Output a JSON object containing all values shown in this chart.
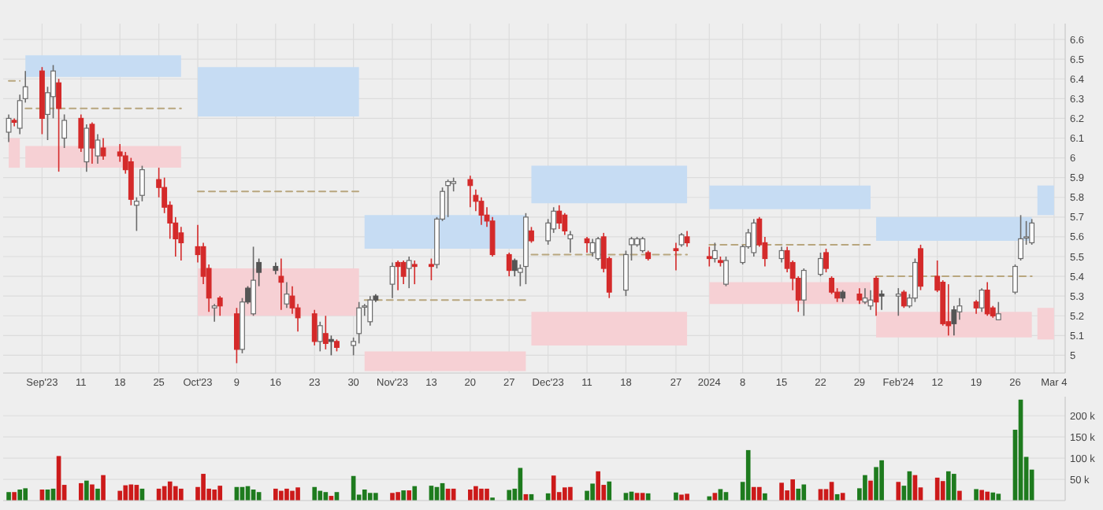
{
  "chart_data": [
    {
      "type": "candlestick",
      "grid": true,
      "x": [
        "2023-08-29",
        "2023-08-30",
        "2023-08-31",
        "2023-09-01",
        "2023-09-04",
        "2023-09-05",
        "2023-09-06",
        "2023-09-07",
        "2023-09-08",
        "2023-09-11",
        "2023-09-12",
        "2023-09-13",
        "2023-09-14",
        "2023-09-15",
        "2023-09-18",
        "2023-09-19",
        "2023-09-20",
        "2023-09-21",
        "2023-09-22",
        "2023-09-25",
        "2023-09-26",
        "2023-09-27",
        "2023-09-28",
        "2023-09-29",
        "2023-10-02",
        "2023-10-03",
        "2023-10-04",
        "2023-10-05",
        "2023-10-06",
        "2023-10-09",
        "2023-10-10",
        "2023-10-11",
        "2023-10-12",
        "2023-10-13",
        "2023-10-16",
        "2023-10-17",
        "2023-10-18",
        "2023-10-19",
        "2023-10-20",
        "2023-10-23",
        "2023-10-24",
        "2023-10-25",
        "2023-10-26",
        "2023-10-27",
        "2023-10-30",
        "2023-10-31",
        "2023-11-01",
        "2023-11-02",
        "2023-11-03",
        "2023-11-06",
        "2023-11-07",
        "2023-11-08",
        "2023-11-09",
        "2023-11-10",
        "2023-11-13",
        "2023-11-14",
        "2023-11-15",
        "2023-11-16",
        "2023-11-17",
        "2023-11-20",
        "2023-11-21",
        "2023-11-22",
        "2023-11-23",
        "2023-11-24",
        "2023-11-27",
        "2023-11-28",
        "2023-11-29",
        "2023-11-30",
        "2023-12-01",
        "2023-12-04",
        "2023-12-05",
        "2023-12-06",
        "2023-12-07",
        "2023-12-08",
        "2023-12-11",
        "2023-12-12",
        "2023-12-13",
        "2023-12-14",
        "2023-12-15",
        "2023-12-18",
        "2023-12-19",
        "2023-12-20",
        "2023-12-21",
        "2023-12-22",
        "2023-12-27",
        "2023-12-28",
        "2023-12-29",
        "2024-01-02",
        "2024-01-03",
        "2024-01-04",
        "2024-01-05",
        "2024-01-08",
        "2024-01-09",
        "2024-01-10",
        "2024-01-11",
        "2024-01-12",
        "2024-01-15",
        "2024-01-16",
        "2024-01-17",
        "2024-01-18",
        "2024-01-19",
        "2024-01-22",
        "2024-01-23",
        "2024-01-24",
        "2024-01-25",
        "2024-01-26",
        "2024-01-29",
        "2024-01-30",
        "2024-01-31",
        "2024-02-01",
        "2024-02-02",
        "2024-02-05",
        "2024-02-06",
        "2024-02-07",
        "2024-02-08",
        "2024-02-09",
        "2024-02-12",
        "2024-02-13",
        "2024-02-14",
        "2024-02-15",
        "2024-02-16",
        "2024-02-19",
        "2024-02-20",
        "2024-02-21",
        "2024-02-22",
        "2024-02-23",
        "2024-02-26",
        "2024-02-27",
        "2024-02-28",
        "2024-02-29"
      ],
      "ohlc": [
        [
          6.13,
          6.22,
          6.08,
          6.2
        ],
        [
          6.19,
          6.2,
          6.16,
          6.18
        ],
        [
          6.15,
          6.32,
          6.12,
          6.29
        ],
        [
          6.3,
          6.44,
          6.28,
          6.36
        ],
        [
          6.44,
          6.46,
          6.12,
          6.2
        ],
        [
          6.22,
          6.36,
          6.09,
          6.33
        ],
        [
          6.31,
          6.47,
          6.2,
          6.44
        ],
        [
          6.38,
          6.4,
          5.93,
          6.25
        ],
        [
          6.1,
          6.22,
          6.05,
          6.19
        ],
        [
          6.2,
          6.22,
          6.03,
          6.05
        ],
        [
          5.98,
          6.17,
          5.93,
          6.15
        ],
        [
          6.17,
          6.18,
          5.97,
          6.05
        ],
        [
          6.01,
          6.12,
          5.97,
          6.09
        ],
        [
          6.05,
          6.1,
          5.99,
          6.01
        ],
        [
          6.03,
          6.07,
          5.98,
          6.01
        ],
        [
          6.01,
          6.03,
          5.92,
          5.94
        ],
        [
          5.98,
          6.0,
          5.76,
          5.79
        ],
        [
          5.76,
          5.8,
          5.63,
          5.78
        ],
        [
          5.81,
          5.96,
          5.78,
          5.94
        ],
        [
          5.89,
          5.95,
          5.8,
          5.85
        ],
        [
          5.85,
          5.9,
          5.72,
          5.75
        ],
        [
          5.76,
          5.78,
          5.59,
          5.67
        ],
        [
          5.67,
          5.7,
          5.5,
          5.59
        ],
        [
          5.62,
          5.65,
          5.48,
          5.57
        ],
        [
          5.55,
          5.66,
          5.47,
          5.51
        ],
        [
          5.55,
          5.57,
          5.36,
          5.4
        ],
        [
          5.44,
          5.46,
          5.22,
          5.29
        ],
        [
          5.24,
          5.26,
          5.17,
          5.25
        ],
        [
          5.29,
          5.3,
          5.2,
          5.25
        ],
        [
          5.21,
          5.24,
          4.96,
          5.03
        ],
        [
          5.03,
          5.29,
          5.01,
          5.27
        ],
        [
          5.27,
          5.35,
          5.26,
          5.34
        ],
        [
          5.21,
          5.55,
          5.2,
          5.38
        ],
        [
          5.42,
          5.49,
          5.35,
          5.47
        ],
        [
          5.43,
          5.47,
          5.41,
          5.45
        ],
        [
          5.4,
          5.49,
          5.23,
          5.37
        ],
        [
          5.26,
          5.37,
          5.24,
          5.31
        ],
        [
          5.3,
          5.35,
          5.21,
          5.24
        ],
        [
          5.24,
          5.26,
          5.12,
          5.19
        ],
        [
          5.21,
          5.23,
          5.05,
          5.07
        ],
        [
          5.07,
          5.17,
          5.02,
          5.15
        ],
        [
          5.11,
          5.2,
          5.03,
          5.06
        ],
        [
          5.07,
          5.1,
          5.0,
          5.08
        ],
        [
          5.07,
          5.08,
          5.02,
          5.04
        ],
        [
          5.05,
          5.09,
          5.0,
          5.07
        ],
        [
          5.11,
          5.27,
          5.06,
          5.24
        ],
        [
          5.25,
          5.26,
          5.2,
          5.25
        ],
        [
          5.17,
          5.3,
          5.15,
          5.28
        ],
        [
          5.28,
          5.31,
          5.27,
          5.3
        ],
        [
          5.36,
          5.47,
          5.29,
          5.45
        ],
        [
          5.47,
          5.48,
          5.33,
          5.45
        ],
        [
          5.47,
          5.48,
          5.36,
          5.4
        ],
        [
          5.44,
          5.5,
          5.34,
          5.48
        ],
        [
          5.46,
          5.48,
          5.36,
          5.45
        ],
        [
          5.46,
          5.49,
          5.38,
          5.45
        ],
        [
          5.46,
          5.7,
          5.44,
          5.69
        ],
        [
          5.69,
          5.85,
          5.68,
          5.83
        ],
        [
          5.86,
          5.89,
          5.7,
          5.88
        ],
        [
          5.87,
          5.9,
          5.83,
          5.88
        ],
        [
          5.89,
          5.91,
          5.75,
          5.86
        ],
        [
          5.81,
          5.84,
          5.73,
          5.78
        ],
        [
          5.78,
          5.8,
          5.66,
          5.71
        ],
        [
          5.71,
          5.75,
          5.65,
          5.68
        ],
        [
          5.68,
          5.7,
          5.5,
          5.51
        ],
        [
          5.51,
          5.52,
          5.4,
          5.43
        ],
        [
          5.43,
          5.49,
          5.4,
          5.48
        ],
        [
          5.42,
          5.46,
          5.35,
          5.44
        ],
        [
          5.45,
          5.72,
          5.36,
          5.7
        ],
        [
          5.63,
          5.65,
          5.57,
          5.58
        ],
        [
          5.58,
          5.69,
          5.56,
          5.67
        ],
        [
          5.64,
          5.75,
          5.62,
          5.73
        ],
        [
          5.73,
          5.76,
          5.64,
          5.67
        ],
        [
          5.71,
          5.72,
          5.61,
          5.63
        ],
        [
          5.59,
          5.63,
          5.52,
          5.61
        ],
        [
          5.59,
          5.6,
          5.52,
          5.57
        ],
        [
          5.52,
          5.59,
          5.5,
          5.57
        ],
        [
          5.49,
          5.6,
          5.48,
          5.59
        ],
        [
          5.6,
          5.62,
          5.42,
          5.44
        ],
        [
          5.49,
          5.5,
          5.29,
          5.32
        ],
        [
          5.33,
          5.53,
          5.3,
          5.51
        ],
        [
          5.56,
          5.6,
          5.48,
          5.59
        ],
        [
          5.56,
          5.6,
          5.55,
          5.59
        ],
        [
          5.53,
          5.6,
          5.52,
          5.59
        ],
        [
          5.52,
          5.53,
          5.48,
          5.49
        ],
        [
          5.54,
          5.57,
          5.43,
          5.53
        ],
        [
          5.56,
          5.62,
          5.55,
          5.61
        ],
        [
          5.6,
          5.63,
          5.55,
          5.57
        ],
        [
          5.5,
          5.55,
          5.45,
          5.49
        ],
        [
          5.49,
          5.57,
          5.47,
          5.53
        ],
        [
          5.48,
          5.5,
          5.45,
          5.47
        ],
        [
          5.36,
          5.5,
          5.35,
          5.48
        ],
        [
          5.47,
          5.56,
          5.46,
          5.55
        ],
        [
          5.55,
          5.64,
          5.54,
          5.62
        ],
        [
          5.52,
          5.69,
          5.5,
          5.67
        ],
        [
          5.69,
          5.7,
          5.55,
          5.56
        ],
        [
          5.57,
          5.6,
          5.45,
          5.49
        ],
        [
          5.49,
          5.55,
          5.47,
          5.53
        ],
        [
          5.53,
          5.55,
          5.42,
          5.44
        ],
        [
          5.47,
          5.48,
          5.33,
          5.39
        ],
        [
          5.39,
          5.4,
          5.22,
          5.28
        ],
        [
          5.28,
          5.44,
          5.2,
          5.43
        ],
        [
          5.41,
          5.52,
          5.4,
          5.49
        ],
        [
          5.52,
          5.54,
          5.42,
          5.44
        ],
        [
          5.39,
          5.4,
          5.31,
          5.32
        ],
        [
          5.32,
          5.34,
          5.27,
          5.29
        ],
        [
          5.29,
          5.33,
          5.27,
          5.32
        ],
        [
          5.31,
          5.34,
          5.26,
          5.28
        ],
        [
          5.27,
          5.34,
          5.26,
          5.29
        ],
        [
          5.25,
          5.33,
          5.23,
          5.28
        ],
        [
          5.39,
          5.4,
          5.2,
          5.27
        ],
        [
          5.3,
          5.33,
          5.23,
          5.31
        ],
        [
          5.3,
          5.34,
          5.2,
          5.31
        ],
        [
          5.32,
          5.33,
          5.24,
          5.25
        ],
        [
          5.25,
          5.31,
          5.24,
          5.29
        ],
        [
          5.29,
          5.49,
          5.27,
          5.47
        ],
        [
          5.54,
          5.56,
          5.33,
          5.35
        ],
        [
          5.4,
          5.48,
          5.32,
          5.33
        ],
        [
          5.37,
          5.38,
          5.15,
          5.16
        ],
        [
          5.17,
          5.36,
          5.1,
          5.15
        ],
        [
          5.16,
          5.25,
          5.1,
          5.23
        ],
        [
          5.22,
          5.29,
          5.18,
          5.25
        ],
        [
          5.27,
          5.28,
          5.21,
          5.24
        ],
        [
          5.24,
          5.34,
          5.22,
          5.33
        ],
        [
          5.33,
          5.37,
          5.2,
          5.21
        ],
        [
          5.24,
          5.25,
          5.19,
          5.2
        ],
        [
          5.18,
          5.27,
          5.18,
          5.21
        ],
        [
          5.32,
          5.46,
          5.31,
          5.45
        ],
        [
          5.49,
          5.71,
          5.48,
          5.59
        ],
        [
          5.6,
          5.68,
          5.56,
          5.6
        ],
        [
          5.57,
          5.69,
          5.56,
          5.67
        ]
      ],
      "colors": [
        "#ffffff",
        "#d42a2a",
        "#ffffff",
        "#ffffff",
        "#d42a2a",
        "#ffffff",
        "#ffffff",
        "#d42a2a",
        "#ffffff",
        "#d42a2a",
        "#ffffff",
        "#d42a2a",
        "#ffffff",
        "#d42a2a",
        "#d42a2a",
        "#d42a2a",
        "#d42a2a",
        "#ffffff",
        "#ffffff",
        "#d42a2a",
        "#d42a2a",
        "#d42a2a",
        "#d42a2a",
        "#d42a2a",
        "#d42a2a",
        "#d42a2a",
        "#d42a2a",
        "#ffffff",
        "#d42a2a",
        "#d42a2a",
        "#ffffff",
        "#555555",
        "#ffffff",
        "#555555",
        "#555555",
        "#d42a2a",
        "#ffffff",
        "#d42a2a",
        "#d42a2a",
        "#d42a2a",
        "#ffffff",
        "#d42a2a",
        "#555555",
        "#d42a2a",
        "#ffffff",
        "#ffffff",
        "#ffffff",
        "#ffffff",
        "#555555",
        "#ffffff",
        "#d42a2a",
        "#d42a2a",
        "#ffffff",
        "#d42a2a",
        "#d42a2a",
        "#ffffff",
        "#ffffff",
        "#ffffff",
        "#ffffff",
        "#d42a2a",
        "#d42a2a",
        "#d42a2a",
        "#d42a2a",
        "#d42a2a",
        "#d42a2a",
        "#555555",
        "#ffffff",
        "#ffffff",
        "#d42a2a",
        "#ffffff",
        "#ffffff",
        "#d42a2a",
        "#d42a2a",
        "#ffffff",
        "#d42a2a",
        "#ffffff",
        "#ffffff",
        "#d42a2a",
        "#d42a2a",
        "#ffffff",
        "#ffffff",
        "#ffffff",
        "#ffffff",
        "#d42a2a",
        "#d42a2a",
        "#ffffff",
        "#d42a2a",
        "#d42a2a",
        "#ffffff",
        "#d42a2a",
        "#ffffff",
        "#ffffff",
        "#ffffff",
        "#ffffff",
        "#d42a2a",
        "#d42a2a",
        "#ffffff",
        "#d42a2a",
        "#d42a2a",
        "#d42a2a",
        "#ffffff",
        "#ffffff",
        "#d42a2a",
        "#d42a2a",
        "#d42a2a",
        "#555555",
        "#d42a2a",
        "#ffffff",
        "#ffffff",
        "#d42a2a",
        "#555555",
        "#ffffff",
        "#d42a2a",
        "#ffffff",
        "#ffffff",
        "#d42a2a",
        "#d42a2a",
        "#d42a2a",
        "#d42a2a",
        "#555555",
        "#ffffff",
        "#d42a2a",
        "#ffffff",
        "#d42a2a",
        "#d42a2a",
        "#ffffff",
        "#ffffff",
        "#ffffff",
        "#ffffff",
        "#ffffff"
      ],
      "series": [
        {
          "type": "area",
          "x": [
            "2023-08-29",
            "2023-08-31"
          ],
          "lower": [
            5.95,
            5.95
          ],
          "upper": [
            6.1,
            6.1
          ],
          "values": [
            null,
            null
          ],
          "color": "#f6d0d4"
        },
        {
          "type": "line",
          "x": [
            "2023-08-29",
            "2023-08-31"
          ],
          "values": [
            6.39,
            6.39
          ],
          "color": "#b8a67e",
          "line_style": "dashed"
        },
        {
          "type": "area",
          "x": [
            "2023-09-01",
            "2023-09-29"
          ],
          "lower": [
            6.41,
            6.41
          ],
          "upper": [
            6.52,
            6.52
          ],
          "values": [
            null,
            null
          ],
          "color": "#c6dcf3"
        },
        {
          "type": "line",
          "x": [
            "2023-09-01",
            "2023-09-29"
          ],
          "values": [
            6.25,
            6.25
          ],
          "color": "#b8a67e",
          "line_style": "dashed"
        },
        {
          "type": "area",
          "x": [
            "2023-09-01",
            "2023-09-29"
          ],
          "lower": [
            5.95,
            5.95
          ],
          "upper": [
            6.06,
            6.06
          ],
          "values": [
            null,
            null
          ],
          "color": "#f6d0d4"
        },
        {
          "type": "area",
          "x": [
            "2023-10-02",
            "2023-10-31"
          ],
          "lower": [
            6.21,
            6.21
          ],
          "upper": [
            6.46,
            6.46
          ],
          "values": [
            null,
            null
          ],
          "color": "#c6dcf3"
        },
        {
          "type": "line",
          "x": [
            "2023-10-02",
            "2023-10-31"
          ],
          "values": [
            5.83,
            5.83
          ],
          "color": "#b8a67e",
          "line_style": "dashed"
        },
        {
          "type": "area",
          "x": [
            "2023-10-02",
            "2023-10-31"
          ],
          "lower": [
            5.2,
            5.2
          ],
          "upper": [
            5.44,
            5.44
          ],
          "values": [
            null,
            null
          ],
          "color": "#f6d0d4"
        },
        {
          "type": "area",
          "x": [
            "2023-11-01",
            "2023-11-30"
          ],
          "lower": [
            5.54,
            5.54
          ],
          "upper": [
            5.71,
            5.71
          ],
          "values": [
            null,
            null
          ],
          "color": "#c6dcf3"
        },
        {
          "type": "line",
          "x": [
            "2023-11-01",
            "2023-11-30"
          ],
          "values": [
            5.28,
            5.28
          ],
          "color": "#b8a67e",
          "line_style": "dashed"
        },
        {
          "type": "area",
          "x": [
            "2023-11-01",
            "2023-11-30"
          ],
          "lower": [
            4.92,
            4.92
          ],
          "upper": [
            5.02,
            5.02
          ],
          "values": [
            null,
            null
          ],
          "color": "#f6d0d4"
        },
        {
          "type": "area",
          "x": [
            "2023-12-01",
            "2023-12-29"
          ],
          "lower": [
            5.77,
            5.77
          ],
          "upper": [
            5.96,
            5.96
          ],
          "values": [
            null,
            null
          ],
          "color": "#c6dcf3"
        },
        {
          "type": "line",
          "x": [
            "2023-12-01",
            "2023-12-29"
          ],
          "values": [
            5.51,
            5.51
          ],
          "color": "#b8a67e",
          "line_style": "dashed"
        },
        {
          "type": "area",
          "x": [
            "2023-12-01",
            "2023-12-29"
          ],
          "lower": [
            5.05,
            5.05
          ],
          "upper": [
            5.22,
            5.22
          ],
          "values": [
            null,
            null
          ],
          "color": "#f6d0d4"
        },
        {
          "type": "area",
          "x": [
            "2024-01-02",
            "2024-01-31"
          ],
          "lower": [
            5.74,
            5.74
          ],
          "upper": [
            5.86,
            5.86
          ],
          "values": [
            null,
            null
          ],
          "color": "#c6dcf3"
        },
        {
          "type": "line",
          "x": [
            "2024-01-02",
            "2024-01-31"
          ],
          "values": [
            5.56,
            5.56
          ],
          "color": "#b8a67e",
          "line_style": "dashed"
        },
        {
          "type": "area",
          "x": [
            "2024-01-02",
            "2024-01-31"
          ],
          "lower": [
            5.26,
            5.26
          ],
          "upper": [
            5.37,
            5.37
          ],
          "values": [
            null,
            null
          ],
          "color": "#f6d0d4"
        },
        {
          "type": "area",
          "x": [
            "2024-02-01",
            "2024-02-29"
          ],
          "lower": [
            5.58,
            5.58
          ],
          "upper": [
            5.7,
            5.7
          ],
          "values": [
            null,
            null
          ],
          "color": "#c6dcf3"
        },
        {
          "type": "line",
          "x": [
            "2024-02-01",
            "2024-02-29"
          ],
          "values": [
            5.4,
            5.4
          ],
          "color": "#b8a67e",
          "line_style": "dashed"
        },
        {
          "type": "area",
          "x": [
            "2024-02-01",
            "2024-02-29"
          ],
          "lower": [
            5.09,
            5.09
          ],
          "upper": [
            5.22,
            5.22
          ],
          "values": [
            null,
            null
          ],
          "color": "#f6d0d4"
        },
        {
          "type": "area",
          "x": [
            "2024-03-01",
            "2024-03-04"
          ],
          "lower": [
            5.71,
            5.71
          ],
          "upper": [
            5.86,
            5.86
          ],
          "values": [
            null,
            null
          ],
          "color": "#c6dcf3"
        },
        {
          "type": "area",
          "x": [
            "2024-03-01",
            "2024-03-04"
          ],
          "lower": [
            5.08,
            5.08
          ],
          "upper": [
            5.24,
            5.24
          ],
          "values": [
            null,
            null
          ],
          "color": "#f6d0d4"
        }
      ],
      "xlim": [
        "2023-08-28",
        "2024-03-06"
      ],
      "xticks": [
        {
          "value": "2023-09-04",
          "label": "Sep'23"
        },
        {
          "value": "2023-09-11",
          "label": "11"
        },
        {
          "value": "2023-09-18",
          "label": "18"
        },
        {
          "value": "2023-09-25",
          "label": "25"
        },
        {
          "value": "2023-10-02",
          "label": "Oct'23"
        },
        {
          "value": "2023-10-09",
          "label": "9"
        },
        {
          "value": "2023-10-16",
          "label": "16"
        },
        {
          "value": "2023-10-23",
          "label": "23"
        },
        {
          "value": "2023-10-30",
          "label": "30"
        },
        {
          "value": "2023-11-06",
          "label": "Nov'23"
        },
        {
          "value": "2023-11-13",
          "label": "13"
        },
        {
          "value": "2023-11-20",
          "label": "20"
        },
        {
          "value": "2023-11-27",
          "label": "27"
        },
        {
          "value": "2023-12-04",
          "label": "Dec'23"
        },
        {
          "value": "2023-12-11",
          "label": "11"
        },
        {
          "value": "2023-12-18",
          "label": "18"
        },
        {
          "value": "2023-12-27",
          "label": "27"
        },
        {
          "value": "2024-01-02",
          "label": "2024"
        },
        {
          "value": "2024-01-08",
          "label": "8"
        },
        {
          "value": "2024-01-15",
          "label": "15"
        },
        {
          "value": "2024-01-22",
          "label": "22"
        },
        {
          "value": "2024-01-29",
          "label": "29"
        },
        {
          "value": "2024-02-05",
          "label": "Feb'24"
        },
        {
          "value": "2024-02-12",
          "label": "12"
        },
        {
          "value": "2024-02-19",
          "label": "19"
        },
        {
          "value": "2024-02-26",
          "label": "26"
        },
        {
          "value": "2024-03-04",
          "label": "Mar 4"
        }
      ],
      "ylim": [
        4.91,
        6.68
      ],
      "yticks": [
        5,
        5.1,
        5.2,
        5.3,
        5.4,
        5.5,
        5.6,
        5.7,
        5.8,
        5.9,
        6,
        6.1,
        6.2,
        6.3,
        6.4,
        6.5,
        6.6
      ]
    },
    {
      "type": "bar",
      "grid": true,
      "tick_labels": "y",
      "x": [
        "2023-08-29",
        "2023-08-30",
        "2023-08-31",
        "2023-09-01",
        "2023-09-04",
        "2023-09-05",
        "2023-09-06",
        "2023-09-07",
        "2023-09-08",
        "2023-09-11",
        "2023-09-12",
        "2023-09-13",
        "2023-09-14",
        "2023-09-15",
        "2023-09-18",
        "2023-09-19",
        "2023-09-20",
        "2023-09-21",
        "2023-09-22",
        "2023-09-25",
        "2023-09-26",
        "2023-09-27",
        "2023-09-28",
        "2023-09-29",
        "2023-10-02",
        "2023-10-03",
        "2023-10-04",
        "2023-10-05",
        "2023-10-06",
        "2023-10-09",
        "2023-10-10",
        "2023-10-11",
        "2023-10-12",
        "2023-10-13",
        "2023-10-16",
        "2023-10-17",
        "2023-10-18",
        "2023-10-19",
        "2023-10-20",
        "2023-10-23",
        "2023-10-24",
        "2023-10-25",
        "2023-10-26",
        "2023-10-27",
        "2023-10-30",
        "2023-10-31",
        "2023-11-01",
        "2023-11-02",
        "2023-11-03",
        "2023-11-06",
        "2023-11-07",
        "2023-11-08",
        "2023-11-09",
        "2023-11-10",
        "2023-11-13",
        "2023-11-14",
        "2023-11-15",
        "2023-11-16",
        "2023-11-17",
        "2023-11-20",
        "2023-11-21",
        "2023-11-22",
        "2023-11-23",
        "2023-11-24",
        "2023-11-27",
        "2023-11-28",
        "2023-11-29",
        "2023-11-30",
        "2023-12-01",
        "2023-12-04",
        "2023-12-05",
        "2023-12-06",
        "2023-12-07",
        "2023-12-08",
        "2023-12-11",
        "2023-12-12",
        "2023-12-13",
        "2023-12-14",
        "2023-12-15",
        "2023-12-18",
        "2023-12-19",
        "2023-12-20",
        "2023-12-21",
        "2023-12-22",
        "2023-12-27",
        "2023-12-28",
        "2023-12-29",
        "2024-01-02",
        "2024-01-03",
        "2024-01-04",
        "2024-01-05",
        "2024-01-08",
        "2024-01-09",
        "2024-01-10",
        "2024-01-11",
        "2024-01-12",
        "2024-01-15",
        "2024-01-16",
        "2024-01-17",
        "2024-01-18",
        "2024-01-19",
        "2024-01-22",
        "2024-01-23",
        "2024-01-24",
        "2024-01-25",
        "2024-01-26",
        "2024-01-29",
        "2024-01-30",
        "2024-01-31",
        "2024-02-01",
        "2024-02-02",
        "2024-02-05",
        "2024-02-06",
        "2024-02-07",
        "2024-02-08",
        "2024-02-09",
        "2024-02-12",
        "2024-02-13",
        "2024-02-14",
        "2024-02-15",
        "2024-02-16",
        "2024-02-19",
        "2024-02-20",
        "2024-02-21",
        "2024-02-22",
        "2024-02-23",
        "2024-02-26",
        "2024-02-27",
        "2024-02-28",
        "2024-02-29"
      ],
      "values": [
        20,
        20,
        26,
        29,
        26,
        26,
        28,
        105,
        37,
        41,
        47,
        38,
        28,
        60,
        23,
        36,
        38,
        37,
        28,
        28,
        34,
        45,
        34,
        28,
        32,
        63,
        28,
        26,
        35,
        32,
        32,
        34,
        26,
        20,
        28,
        23,
        28,
        23,
        31,
        32,
        23,
        20,
        11,
        20,
        58,
        14,
        26,
        18,
        18,
        18,
        20,
        24,
        24,
        34,
        35,
        32,
        41,
        28,
        28,
        26,
        34,
        28,
        28,
        7,
        25,
        28,
        77,
        15,
        15,
        17,
        59,
        20,
        31,
        32,
        23,
        40,
        69,
        37,
        45,
        18,
        21,
        18,
        18,
        17,
        19,
        14,
        16,
        10,
        18,
        27,
        20,
        44,
        119,
        32,
        32,
        17,
        42,
        24,
        50,
        28,
        38,
        27,
        27,
        44,
        15,
        18,
        29,
        60,
        47,
        79,
        95,
        44,
        35,
        69,
        60,
        31,
        54,
        46,
        69,
        63,
        23,
        27,
        25,
        21,
        19,
        16,
        167,
        238,
        103,
        73
      ],
      "colors": [
        "#1e7b1e",
        "#cc1a1a",
        "#1e7b1e",
        "#1e7b1e",
        "#cc1a1a",
        "#1e7b1e",
        "#1e7b1e",
        "#cc1a1a",
        "#cc1a1a",
        "#cc1a1a",
        "#1e7b1e",
        "#cc1a1a",
        "#1e7b1e",
        "#cc1a1a",
        "#cc1a1a",
        "#cc1a1a",
        "#cc1a1a",
        "#cc1a1a",
        "#1e7b1e",
        "#cc1a1a",
        "#cc1a1a",
        "#cc1a1a",
        "#cc1a1a",
        "#cc1a1a",
        "#cc1a1a",
        "#cc1a1a",
        "#cc1a1a",
        "#cc1a1a",
        "#cc1a1a",
        "#1e7b1e",
        "#1e7b1e",
        "#1e7b1e",
        "#1e7b1e",
        "#1e7b1e",
        "#cc1a1a",
        "#cc1a1a",
        "#cc1a1a",
        "#cc1a1a",
        "#cc1a1a",
        "#1e7b1e",
        "#1e7b1e",
        "#1e7b1e",
        "#cc1a1a",
        "#1e7b1e",
        "#1e7b1e",
        "#1e7b1e",
        "#1e7b1e",
        "#1e7b1e",
        "#1e7b1e",
        "#cc1a1a",
        "#cc1a1a",
        "#1e7b1e",
        "#cc1a1a",
        "#1e7b1e",
        "#1e7b1e",
        "#1e7b1e",
        "#1e7b1e",
        "#cc1a1a",
        "#cc1a1a",
        "#cc1a1a",
        "#cc1a1a",
        "#cc1a1a",
        "#cc1a1a",
        "#1e7b1e",
        "#1e7b1e",
        "#1e7b1e",
        "#1e7b1e",
        "#cc1a1a",
        "#1e7b1e",
        "#1e7b1e",
        "#cc1a1a",
        "#cc1a1a",
        "#cc1a1a",
        "#cc1a1a",
        "#1e7b1e",
        "#1e7b1e",
        "#cc1a1a",
        "#cc1a1a",
        "#1e7b1e",
        "#1e7b1e",
        "#1e7b1e",
        "#cc1a1a",
        "#cc1a1a",
        "#1e7b1e",
        "#1e7b1e",
        "#cc1a1a",
        "#cc1a1a",
        "#1e7b1e",
        "#cc1a1a",
        "#1e7b1e",
        "#1e7b1e",
        "#1e7b1e",
        "#1e7b1e",
        "#cc1a1a",
        "#cc1a1a",
        "#1e7b1e",
        "#cc1a1a",
        "#cc1a1a",
        "#cc1a1a",
        "#1e7b1e",
        "#1e7b1e",
        "#cc1a1a",
        "#cc1a1a",
        "#cc1a1a",
        "#1e7b1e",
        "#cc1a1a",
        "#1e7b1e",
        "#1e7b1e",
        "#cc1a1a",
        "#1e7b1e",
        "#1e7b1e",
        "#cc1a1a",
        "#1e7b1e",
        "#1e7b1e",
        "#cc1a1a",
        "#cc1a1a",
        "#cc1a1a",
        "#cc1a1a",
        "#1e7b1e",
        "#1e7b1e",
        "#cc1a1a",
        "#1e7b1e",
        "#cc1a1a",
        "#cc1a1a",
        "#1e7b1e",
        "#1e7b1e",
        "#1e7b1e",
        "#1e7b1e",
        "#1e7b1e",
        "#1e7b1e"
      ],
      "xlim": [
        "2023-08-28",
        "2024-03-06"
      ],
      "ylim": [
        0,
        245
      ],
      "yticks": [
        {
          "value": 50,
          "label": "50 k"
        },
        {
          "value": 100,
          "label": "100 k"
        },
        {
          "value": 150,
          "label": "150 k"
        },
        {
          "value": 200,
          "label": "200 k"
        }
      ]
    }
  ]
}
